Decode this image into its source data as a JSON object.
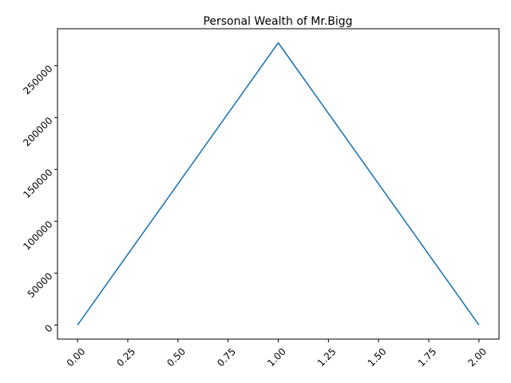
{
  "chart_data": {
    "type": "line",
    "title": "Personal Wealth of Mr.Bigg",
    "xlabel": "",
    "ylabel": "",
    "x": [
      0,
      1,
      2
    ],
    "series": [
      {
        "values": [
          0,
          272000,
          0
        ],
        "color": "#1f77b4"
      }
    ],
    "xlim": [
      -0.1,
      2.1
    ],
    "ylim": [
      -13600,
      285600
    ],
    "x_ticks": [
      0,
      0.25,
      0.5,
      0.75,
      1,
      1.25,
      1.5,
      1.75,
      2
    ],
    "x_tick_labels": [
      "0.00",
      "0.25",
      "0.50",
      "0.75",
      "1.00",
      "1.25",
      "1.50",
      "1.75",
      "2.00"
    ],
    "y_ticks": [
      0,
      50000,
      100000,
      150000,
      200000,
      250000
    ],
    "y_tick_labels": [
      "0",
      "50000",
      "100000",
      "150000",
      "200000",
      "250000"
    ],
    "tick_label_rotation_deg": 45,
    "grid": false,
    "legend": "none"
  }
}
